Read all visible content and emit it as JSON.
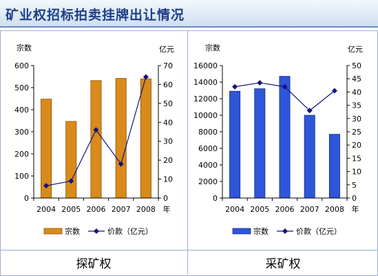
{
  "header": {
    "title": "矿业权招标拍卖挂牌出让情况"
  },
  "panels": [
    {
      "caption": "探矿权"
    },
    {
      "caption": "采矿权"
    }
  ],
  "chart_data": [
    {
      "type": "bar",
      "categories": [
        "2004",
        "2005",
        "2006",
        "2007",
        "2008"
      ],
      "x_unit": "年",
      "series": [
        {
          "name": "宗数",
          "kind": "bar",
          "axis": "left",
          "color": "#d98a1a",
          "values": [
            448,
            347,
            532,
            542,
            540
          ]
        },
        {
          "name": "价款（亿元）",
          "kind": "line",
          "axis": "right",
          "color": "#14147a",
          "values": [
            6.5,
            9,
            36,
            18,
            64
          ]
        }
      ],
      "y_left": {
        "label": "宗数",
        "ylim": [
          0,
          600
        ],
        "ticks": [
          0,
          100,
          200,
          300,
          400,
          500,
          600
        ]
      },
      "y_right": {
        "label": "亿元",
        "ylim": [
          0,
          70
        ],
        "ticks": [
          0,
          10,
          20,
          30,
          40,
          50,
          60,
          70
        ]
      },
      "legend": "bottom",
      "grid": false
    },
    {
      "type": "bar",
      "categories": [
        "2004",
        "2005",
        "2006",
        "2007",
        "2008"
      ],
      "x_unit": "年",
      "series": [
        {
          "name": "宗数",
          "kind": "bar",
          "axis": "left",
          "color": "#2f55d9",
          "values": [
            12900,
            13200,
            14700,
            10000,
            7700
          ]
        },
        {
          "name": "价款（亿元）",
          "kind": "line",
          "axis": "right",
          "color": "#14147a",
          "values": [
            42,
            43.5,
            42,
            33,
            40.5
          ]
        }
      ],
      "y_left": {
        "label": "宗数",
        "ylim": [
          0,
          16000
        ],
        "ticks": [
          0,
          2000,
          4000,
          6000,
          8000,
          10000,
          12000,
          14000,
          16000
        ]
      },
      "y_right": {
        "label": "亿元",
        "ylim": [
          0,
          50
        ],
        "ticks": [
          0,
          5,
          10,
          15,
          20,
          25,
          30,
          35,
          40,
          45,
          50
        ]
      },
      "legend": "bottom",
      "grid": false
    }
  ]
}
